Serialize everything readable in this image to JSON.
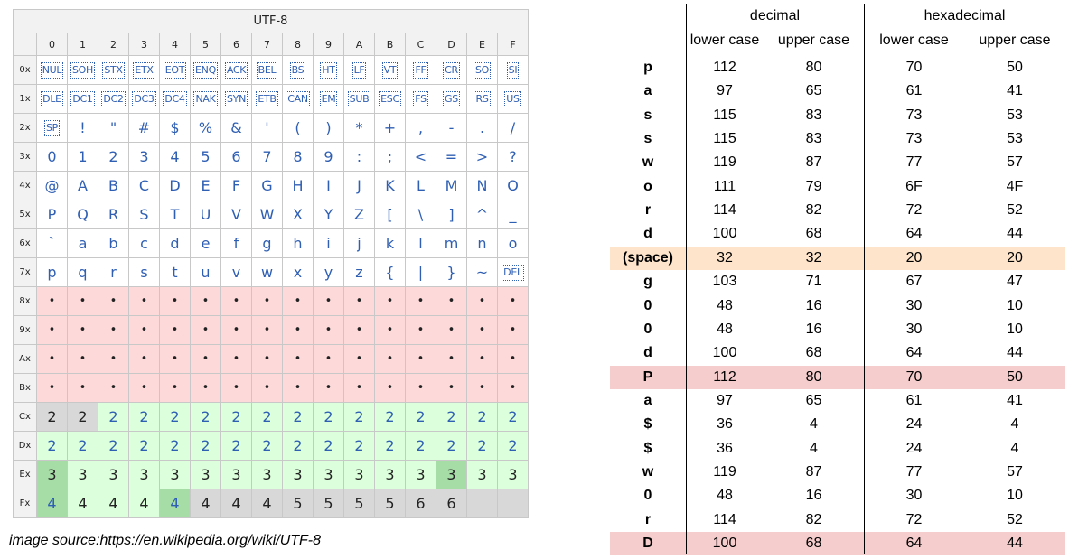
{
  "utf8_table": {
    "title": "UTF-8",
    "col_headers": [
      "0",
      "1",
      "2",
      "3",
      "4",
      "5",
      "6",
      "7",
      "8",
      "9",
      "A",
      "B",
      "C",
      "D",
      "E",
      "F"
    ],
    "row_headers": [
      "0x",
      "1x",
      "2x",
      "3x",
      "4x",
      "5x",
      "6x",
      "7x",
      "8x",
      "9x",
      "Ax",
      "Bx",
      "Cx",
      "Dx",
      "Ex",
      "Fx"
    ],
    "rows": [
      [
        "NUL",
        "SOH",
        "STX",
        "ETX",
        "EOT",
        "ENQ",
        "ACK",
        "BEL",
        "BS",
        "HT",
        "LF",
        "VT",
        "FF",
        "CR",
        "SO",
        "SI"
      ],
      [
        "DLE",
        "DC1",
        "DC2",
        "DC3",
        "DC4",
        "NAK",
        "SYN",
        "ETB",
        "CAN",
        "EM",
        "SUB",
        "ESC",
        "FS",
        "GS",
        "RS",
        "US"
      ],
      [
        "SP",
        "!",
        "\"",
        "#",
        "$",
        "%",
        "&",
        "'",
        "(",
        ")",
        "*",
        "+",
        ",",
        "-",
        ".",
        "/"
      ],
      [
        "0",
        "1",
        "2",
        "3",
        "4",
        "5",
        "6",
        "7",
        "8",
        "9",
        ":",
        ";",
        "<",
        "=",
        ">",
        "?"
      ],
      [
        "@",
        "A",
        "B",
        "C",
        "D",
        "E",
        "F",
        "G",
        "H",
        "I",
        "J",
        "K",
        "L",
        "M",
        "N",
        "O"
      ],
      [
        "P",
        "Q",
        "R",
        "S",
        "T",
        "U",
        "V",
        "W",
        "X",
        "Y",
        "Z",
        "[",
        "\\",
        "]",
        "^",
        "_"
      ],
      [
        "`",
        "a",
        "b",
        "c",
        "d",
        "e",
        "f",
        "g",
        "h",
        "i",
        "j",
        "k",
        "l",
        "m",
        "n",
        "o"
      ],
      [
        "p",
        "q",
        "r",
        "s",
        "t",
        "u",
        "v",
        "w",
        "x",
        "y",
        "z",
        "{",
        "|",
        "}",
        "~",
        "DEL"
      ],
      [
        "•",
        "•",
        "•",
        "•",
        "•",
        "•",
        "•",
        "•",
        "•",
        "•",
        "•",
        "•",
        "•",
        "•",
        "•",
        "•"
      ],
      [
        "•",
        "•",
        "•",
        "•",
        "•",
        "•",
        "•",
        "•",
        "•",
        "•",
        "•",
        "•",
        "•",
        "•",
        "•",
        "•"
      ],
      [
        "•",
        "•",
        "•",
        "•",
        "•",
        "•",
        "•",
        "•",
        "•",
        "•",
        "•",
        "•",
        "•",
        "•",
        "•",
        "•"
      ],
      [
        "•",
        "•",
        "•",
        "•",
        "•",
        "•",
        "•",
        "•",
        "•",
        "•",
        "•",
        "•",
        "•",
        "•",
        "•",
        "•"
      ],
      [
        "2",
        "2",
        "2",
        "2",
        "2",
        "2",
        "2",
        "2",
        "2",
        "2",
        "2",
        "2",
        "2",
        "2",
        "2",
        "2"
      ],
      [
        "2",
        "2",
        "2",
        "2",
        "2",
        "2",
        "2",
        "2",
        "2",
        "2",
        "2",
        "2",
        "2",
        "2",
        "2",
        "2"
      ],
      [
        "3",
        "3",
        "3",
        "3",
        "3",
        "3",
        "3",
        "3",
        "3",
        "3",
        "3",
        "3",
        "3",
        "3",
        "3",
        "3"
      ],
      [
        "4",
        "4",
        "4",
        "4",
        "4",
        "4",
        "4",
        "4",
        "5",
        "5",
        "5",
        "5",
        "6",
        "6",
        "",
        ""
      ]
    ],
    "colors": {
      "header_bg": "#f2f2f2",
      "invalid_bg": "#fdd9d9",
      "lead_bg": "#dcffdc",
      "lead_dark_bg": "#a6dca6",
      "gray_bg": "#d8d8d8",
      "text_blue": "#2f5fb3"
    }
  },
  "image_source": "image source:https://en.wikipedia.org/wiki/UTF-8",
  "ascii_table": {
    "group_headers": {
      "decimal": "decimal",
      "hexadecimal": "hexadecimal"
    },
    "sub_headers": [
      "lower case",
      "upper case",
      "lower case",
      "upper case"
    ],
    "rows": [
      {
        "char": "p",
        "dec_lower": "112",
        "dec_upper": "80",
        "hex_lower": "70",
        "hex_upper": "50",
        "highlight": ""
      },
      {
        "char": "a",
        "dec_lower": "97",
        "dec_upper": "65",
        "hex_lower": "61",
        "hex_upper": "41",
        "highlight": ""
      },
      {
        "char": "s",
        "dec_lower": "115",
        "dec_upper": "83",
        "hex_lower": "73",
        "hex_upper": "53",
        "highlight": ""
      },
      {
        "char": "s",
        "dec_lower": "115",
        "dec_upper": "83",
        "hex_lower": "73",
        "hex_upper": "53",
        "highlight": ""
      },
      {
        "char": "w",
        "dec_lower": "119",
        "dec_upper": "87",
        "hex_lower": "77",
        "hex_upper": "57",
        "highlight": ""
      },
      {
        "char": "o",
        "dec_lower": "111",
        "dec_upper": "79",
        "hex_lower": "6F",
        "hex_upper": "4F",
        "highlight": ""
      },
      {
        "char": "r",
        "dec_lower": "114",
        "dec_upper": "82",
        "hex_lower": "72",
        "hex_upper": "52",
        "highlight": ""
      },
      {
        "char": "d",
        "dec_lower": "100",
        "dec_upper": "68",
        "hex_lower": "64",
        "hex_upper": "44",
        "highlight": ""
      },
      {
        "char": "(space)",
        "dec_lower": "32",
        "dec_upper": "32",
        "hex_lower": "20",
        "hex_upper": "20",
        "highlight": "orange"
      },
      {
        "char": "g",
        "dec_lower": "103",
        "dec_upper": "71",
        "hex_lower": "67",
        "hex_upper": "47",
        "highlight": ""
      },
      {
        "char": "0",
        "dec_lower": "48",
        "dec_upper": "16",
        "hex_lower": "30",
        "hex_upper": "10",
        "highlight": ""
      },
      {
        "char": "0",
        "dec_lower": "48",
        "dec_upper": "16",
        "hex_lower": "30",
        "hex_upper": "10",
        "highlight": ""
      },
      {
        "char": "d",
        "dec_lower": "100",
        "dec_upper": "68",
        "hex_lower": "64",
        "hex_upper": "44",
        "highlight": ""
      },
      {
        "char": "P",
        "dec_lower": "112",
        "dec_upper": "80",
        "hex_lower": "70",
        "hex_upper": "50",
        "highlight": "red"
      },
      {
        "char": "a",
        "dec_lower": "97",
        "dec_upper": "65",
        "hex_lower": "61",
        "hex_upper": "41",
        "highlight": ""
      },
      {
        "char": "$",
        "dec_lower": "36",
        "dec_upper": "4",
        "hex_lower": "24",
        "hex_upper": "4",
        "highlight": ""
      },
      {
        "char": "$",
        "dec_lower": "36",
        "dec_upper": "4",
        "hex_lower": "24",
        "hex_upper": "4",
        "highlight": ""
      },
      {
        "char": "w",
        "dec_lower": "119",
        "dec_upper": "87",
        "hex_lower": "77",
        "hex_upper": "57",
        "highlight": ""
      },
      {
        "char": "0",
        "dec_lower": "48",
        "dec_upper": "16",
        "hex_lower": "30",
        "hex_upper": "10",
        "highlight": ""
      },
      {
        "char": "r",
        "dec_lower": "114",
        "dec_upper": "82",
        "hex_lower": "72",
        "hex_upper": "52",
        "highlight": ""
      },
      {
        "char": "D",
        "dec_lower": "100",
        "dec_upper": "68",
        "hex_lower": "64",
        "hex_upper": "44",
        "highlight": "red"
      }
    ],
    "colors": {
      "orange": "#fde4ca",
      "red": "#f6cdcd"
    }
  }
}
